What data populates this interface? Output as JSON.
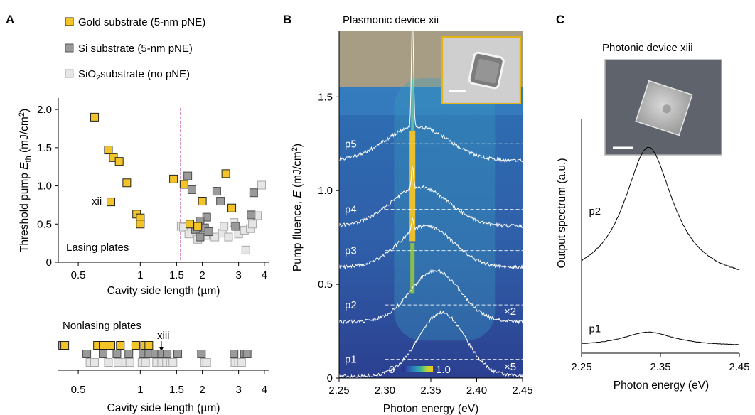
{
  "colors": {
    "gold": "#f3c428",
    "si": "#9a9a9a",
    "sio2": "#e6e6e6",
    "marker_edge": "#222222",
    "cutoff_line": "#b01a8c",
    "spectrum_line": "#ffffff",
    "inset_border": "#e2b514",
    "photo_bg": "#a69d84"
  },
  "panels": {
    "a": {
      "letter": "A",
      "legend": [
        {
          "label": "Gold substrate (5-nm pNE)",
          "color_key": "gold"
        },
        {
          "label": "Si substrate (5-nm pNE)",
          "color_key": "si"
        },
        {
          "label_main": "SiO",
          "label_sub": "2",
          "label_rest": "substrate (no pNE)",
          "color_key": "sio2"
        }
      ],
      "plot_label": "Lasing plates",
      "ylabel_main": "Threshold pump ",
      "ylabel_var": "E",
      "ylabel_sub": "th",
      "ylabel_unit": " (mJ/cm",
      "ylabel_sup": "2",
      "ylabel_end": ")",
      "xlabel": "Cavity side length (µm)",
      "annotation": "xii",
      "nonlasing_label": "Nonlasing plates",
      "nonlasing_annotation": "xiii",
      "nonlasing_xlabel": "Cavity side length (µm)"
    },
    "b": {
      "letter": "B",
      "title": "Plasmonic device xii",
      "ylabel_main": "Pump fluence, ",
      "ylabel_var": "E",
      "ylabel_unit": " (mJ/cm",
      "ylabel_sup": "2",
      "ylabel_end": ")",
      "xlabel": "Photon energy (eV)",
      "colorbar_min": "0",
      "colorbar_max": "1.0",
      "multipliers": [
        {
          "text": "×2",
          "at_fluence": 0.39
        },
        {
          "text": "×5",
          "at_fluence": 0.095
        }
      ]
    },
    "c": {
      "letter": "C",
      "title": "Photonic device xiii",
      "ylabel": "Output spectrum (a.u.)",
      "xlabel": "Photon energy (eV)"
    }
  },
  "chart_data": [
    {
      "type": "scatter",
      "panel": "A-lasing",
      "xscale": "log",
      "xlim": [
        0.4,
        4.2
      ],
      "ylim": [
        0,
        2.15
      ],
      "xticks": [
        0.5,
        1,
        1.5,
        2,
        3,
        4
      ],
      "xtick_labels": [
        "0.5",
        "1",
        "1.5",
        "2",
        "3",
        "4"
      ],
      "yticks": [
        0,
        0.5,
        1.0,
        1.5,
        2.0
      ],
      "ytick_labels": [
        "0",
        "0.5",
        "1.0",
        "1.5",
        "2.0"
      ],
      "cutoff_x": 1.57,
      "series": [
        {
          "name": "Gold substrate (5-nm pNE)",
          "color_key": "gold",
          "points": [
            [
              0.6,
              1.9
            ],
            [
              0.7,
              1.47
            ],
            [
              0.74,
              1.37
            ],
            [
              0.79,
              1.32
            ],
            [
              0.86,
              1.04
            ],
            [
              0.72,
              0.79
            ],
            [
              0.96,
              0.63
            ],
            [
              1.0,
              0.58
            ],
            [
              1.0,
              0.5
            ],
            [
              1.45,
              1.09
            ],
            [
              1.63,
              1.02
            ],
            [
              1.74,
              0.5
            ],
            [
              2.0,
              0.8
            ],
            [
              2.6,
              1.16
            ],
            [
              2.78,
              0.71
            ],
            [
              1.9,
              0.47
            ]
          ]
        },
        {
          "name": "Si substrate (5-nm pNE)",
          "color_key": "si",
          "points": [
            [
              1.7,
              1.13
            ],
            [
              1.78,
              0.95
            ],
            [
              2.35,
              0.93
            ],
            [
              2.45,
              0.8
            ],
            [
              2.1,
              0.59
            ],
            [
              1.95,
              0.54
            ],
            [
              2.05,
              0.45
            ],
            [
              1.85,
              0.43
            ],
            [
              2.15,
              0.4
            ],
            [
              2.9,
              0.47
            ],
            [
              3.45,
              0.62
            ],
            [
              3.55,
              0.91
            ],
            [
              1.95,
              0.33
            ]
          ]
        },
        {
          "name": "SiO2substrate (no pNE)",
          "color_key": "sio2",
          "points": [
            [
              1.58,
              0.47
            ],
            [
              1.62,
              0.46
            ],
            [
              1.78,
              0.41
            ],
            [
              1.72,
              0.37
            ],
            [
              1.9,
              0.3
            ],
            [
              2.07,
              0.35
            ],
            [
              2.3,
              0.33
            ],
            [
              2.5,
              0.38
            ],
            [
              2.68,
              0.33
            ],
            [
              2.55,
              0.47
            ],
            [
              2.85,
              0.52
            ],
            [
              3.0,
              0.37
            ],
            [
              3.2,
              0.42
            ],
            [
              3.25,
              0.16
            ],
            [
              3.42,
              0.44
            ],
            [
              3.5,
              0.5
            ],
            [
              3.7,
              0.61
            ],
            [
              3.88,
              1.01
            ]
          ]
        }
      ]
    },
    {
      "type": "scatter",
      "panel": "A-nonlasing",
      "xscale": "log",
      "xlim": [
        0.4,
        4.2
      ],
      "xticks": [
        0.5,
        1,
        1.5,
        2,
        3,
        4
      ],
      "xtick_labels": [
        "0.5",
        "1",
        "1.5",
        "2",
        "3",
        "4"
      ],
      "rows": [
        {
          "name": "Gold substrate (5-nm pNE)",
          "color_key": "gold",
          "x": [
            0.42,
            0.43,
            0.62,
            0.66,
            0.72,
            0.8,
            0.95,
            1.05,
            1.1
          ]
        },
        {
          "name": "Si substrate (5-nm pNE)",
          "color_key": "si",
          "x": [
            0.55,
            0.66,
            0.77,
            0.88,
            1.03,
            1.1,
            1.18,
            1.27,
            1.35,
            1.52,
            1.98,
            2.85,
            3.2,
            3.3
          ]
        },
        {
          "name": "SiO2substrate (no pNE)",
          "color_key": "sio2",
          "x": [
            0.57,
            0.6,
            0.7,
            0.78,
            0.85,
            0.89,
            1.02,
            1.06,
            1.2,
            1.27,
            1.34,
            1.4,
            1.44,
            2.05,
            2.1,
            2.88,
            3.0,
            3.1
          ]
        }
      ],
      "marked_device": {
        "label": "xiii",
        "x": 1.27
      }
    },
    {
      "type": "heatmap",
      "panel": "B",
      "xlim": [
        2.25,
        2.45
      ],
      "ylim": [
        0,
        1.85
      ],
      "xticks": [
        2.25,
        2.3,
        2.35,
        2.4,
        2.45
      ],
      "xtick_labels": [
        "2.25",
        "2.30",
        "2.35",
        "2.40",
        "2.45"
      ],
      "yticks": [
        0,
        0.5,
        1.0,
        1.5
      ],
      "ytick_labels": [
        "0",
        "0.5",
        "1.0",
        "1.5"
      ],
      "heatmap_top_fluence": 1.6,
      "lasing_peak_eV": 2.33,
      "lasing_onset_fluence": 0.73,
      "colorbar_range": [
        0,
        1.0
      ],
      "spectra": [
        {
          "label": "p1",
          "fluence": 0.1,
          "peak_eV": 2.362,
          "width_eV": 0.036,
          "amp": 0.26,
          "narrow": 0
        },
        {
          "label": "p2",
          "fluence": 0.39,
          "peak_eV": 2.355,
          "width_eV": 0.038,
          "amp": 0.21,
          "narrow": 0
        },
        {
          "label": "p3",
          "fluence": 0.68,
          "peak_eV": 2.345,
          "width_eV": 0.042,
          "amp": 0.17,
          "narrow": 0.07
        },
        {
          "label": "p4",
          "fluence": 0.9,
          "peak_eV": 2.338,
          "width_eV": 0.045,
          "amp": 0.16,
          "narrow": 0.12
        },
        {
          "label": "p5",
          "fluence": 1.25,
          "peak_eV": 2.335,
          "width_eV": 0.048,
          "amp": 0.14,
          "narrow": 0.6
        }
      ]
    },
    {
      "type": "line",
      "panel": "C",
      "xlim": [
        2.25,
        2.45
      ],
      "xticks": [
        2.25,
        2.35,
        2.45
      ],
      "xtick_labels": [
        "2.25",
        "2.35",
        "2.45"
      ],
      "series": [
        {
          "name": "p1",
          "peak_eV": 2.335,
          "width_eV": 0.04,
          "baseline": 0.03,
          "amp": 0.06
        },
        {
          "name": "p2",
          "peak_eV": 2.335,
          "width_eV": 0.038,
          "baseline": 0.3,
          "amp": 0.58
        }
      ]
    }
  ]
}
